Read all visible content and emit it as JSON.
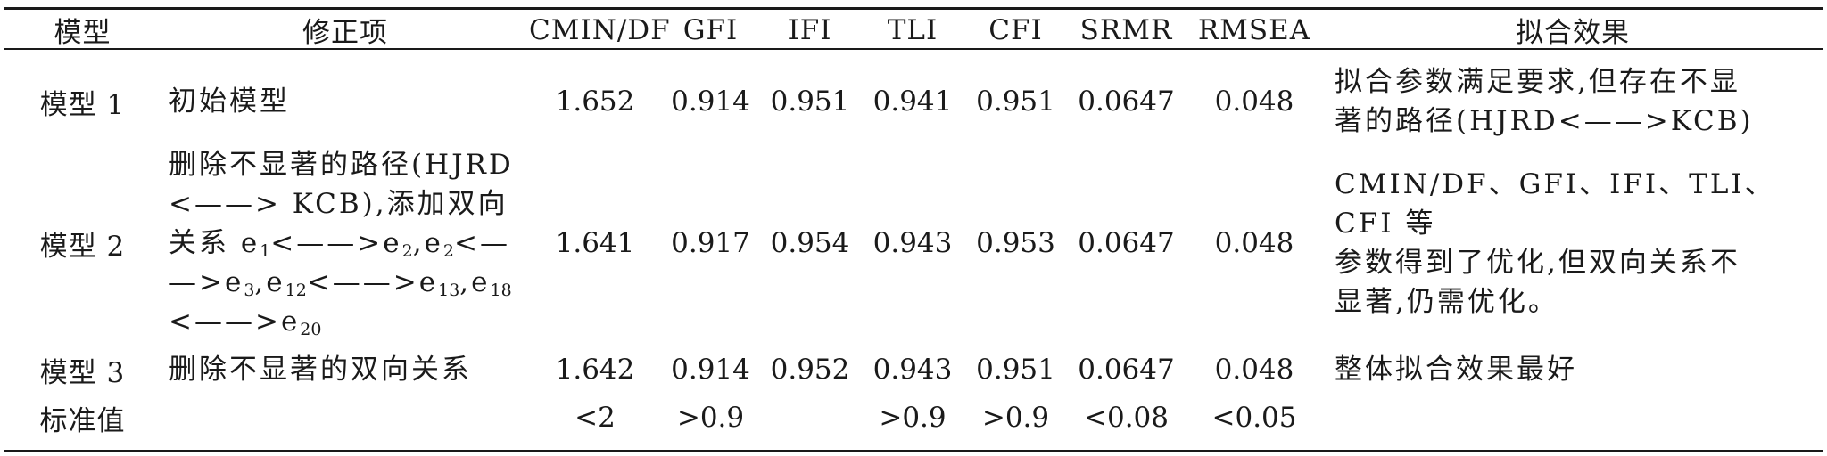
{
  "headers": [
    "模型",
    "修正项",
    "CMIN/DF",
    "GFI",
    "IFI",
    "TLI",
    "CFI",
    "SRMR",
    "RMSEA",
    "拟合效果"
  ],
  "rows": [
    {
      "model": "模型 1",
      "item_lines": [
        "初始模型"
      ],
      "cmin_df": "1.652",
      "gfi": "0.914",
      "ifi": "0.951",
      "tli": "0.941",
      "cfi": "0.951",
      "srmr": "0.0647",
      "rmsea": "0.048",
      "effect_lines": [
        "拟合参数满足要求,但存在不显",
        "著的路径(HJRD<——>KCB)"
      ]
    },
    {
      "model": "模型 2",
      "item_lines": [
        "删除不显著的路径(HJRD",
        "<——> KCB),添加双向",
        "关系 e1<——>e2,e2<—",
        "—>e3,e12<——>e13,e18",
        "<——>e20"
      ],
      "item_parts": {
        "l3a": "关系 e",
        "l3s1": "1",
        "l3b": "<——>e",
        "l3s2": "2",
        "l3c": ",e",
        "l3s3": "2",
        "l3d": "<—",
        "l4a": "—>e",
        "l4s1": "3",
        "l4b": ",e",
        "l4s2": "12",
        "l4c": "<——>e",
        "l4s3": "13",
        "l4d": ",e",
        "l4s4": "18",
        "l5a": "<——>e",
        "l5s1": "20"
      },
      "cmin_df": "1.641",
      "gfi": "0.917",
      "ifi": "0.954",
      "tli": "0.943",
      "cfi": "0.953",
      "srmr": "0.0647",
      "rmsea": "0.048",
      "effect_lines": [
        "CMIN/DF、GFI、IFI、TLI、CFI 等",
        "参数得到了优化,但双向关系不",
        "显著,仍需优化。"
      ]
    },
    {
      "model": "模型 3",
      "item_lines": [
        "删除不显著的双向关系"
      ],
      "cmin_df": "1.642",
      "gfi": "0.914",
      "ifi": "0.952",
      "tli": "0.943",
      "cfi": "0.951",
      "srmr": "0.0647",
      "rmsea": "0.048",
      "effect_lines": [
        "整体拟合效果最好"
      ]
    },
    {
      "model": "标准值",
      "item_lines": [
        ""
      ],
      "cmin_df": "<2",
      "gfi": ">0.9",
      "ifi": "",
      "tli": ">0.9",
      "cfi": ">0.9",
      "srmr": "<0.08",
      "rmsea": "<0.05",
      "effect_lines": [
        ""
      ]
    }
  ]
}
